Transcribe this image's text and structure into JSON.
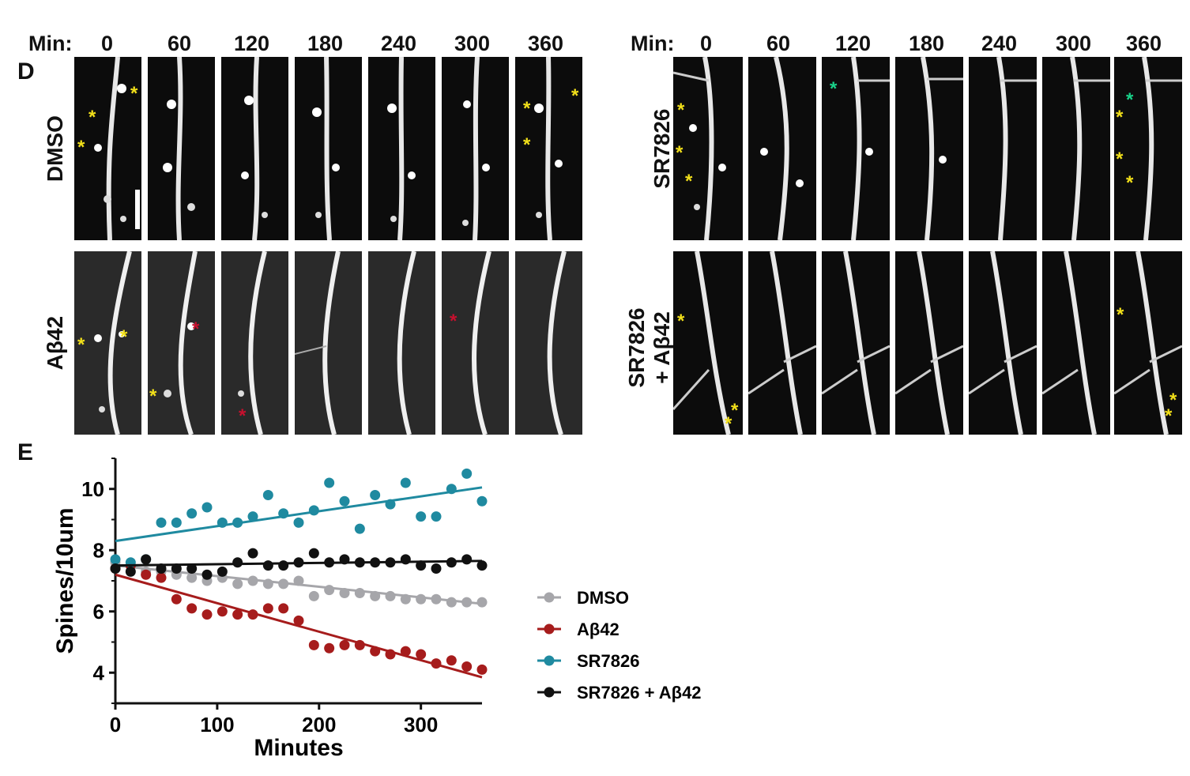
{
  "panel_letters": {
    "d": "D",
    "e": "E"
  },
  "min_label": "Min:",
  "time_points": [
    "0",
    "60",
    "120",
    "180",
    "240",
    "300",
    "360"
  ],
  "row_labels": {
    "dmso": "DMSO",
    "abeta": "Aβ42",
    "sr": "SR7826",
    "sr_abeta_1": "SR7826",
    "sr_abeta_2": "+ Aβ42"
  },
  "star_glyph": "*",
  "colors": {
    "dmso": "#a6a6aa",
    "abeta": "#a61c1c",
    "sr": "#1f8aa0",
    "sr_abeta": "#111111",
    "star_yellow": "#f2e01a",
    "star_red": "#c8102e",
    "star_green": "#19d38a"
  },
  "chart_data": {
    "type": "scatter",
    "title": "",
    "xlabel": "Minutes",
    "ylabel": "Spines/10um",
    "xlim": [
      0,
      360
    ],
    "ylim": [
      3,
      11
    ],
    "xticks": [
      0,
      100,
      200,
      300
    ],
    "yticks": [
      4,
      6,
      8,
      10
    ],
    "legend": "right",
    "x": [
      0,
      15,
      30,
      45,
      60,
      75,
      90,
      105,
      120,
      135,
      150,
      165,
      180,
      195,
      210,
      225,
      240,
      255,
      270,
      285,
      300,
      315,
      330,
      345,
      360
    ],
    "series": [
      {
        "name": "DMSO",
        "color": "#a6a6aa",
        "values": [
          7.6,
          7.5,
          7.3,
          7.3,
          7.2,
          7.1,
          7.0,
          7.1,
          6.9,
          7.0,
          6.9,
          6.9,
          7.0,
          6.5,
          6.7,
          6.6,
          6.6,
          6.5,
          6.5,
          6.4,
          6.4,
          6.4,
          6.3,
          6.3,
          6.3
        ],
        "trend": [
          7.5,
          6.25
        ]
      },
      {
        "name": "Aβ42",
        "color": "#a61c1c",
        "values": [
          7.4,
          7.5,
          7.2,
          7.1,
          6.4,
          6.1,
          5.9,
          6.0,
          5.9,
          5.9,
          6.1,
          6.1,
          5.7,
          4.9,
          4.8,
          4.9,
          4.9,
          4.7,
          4.6,
          4.7,
          4.6,
          4.3,
          4.4,
          4.2,
          4.1
        ],
        "trend": [
          7.2,
          3.85
        ]
      },
      {
        "name": "SR7826",
        "color": "#1f8aa0",
        "values": [
          7.7,
          7.6,
          7.7,
          8.9,
          8.9,
          9.2,
          9.4,
          8.9,
          8.9,
          9.1,
          9.8,
          9.2,
          8.9,
          9.3,
          10.2,
          9.6,
          8.7,
          9.8,
          9.5,
          10.2,
          9.1,
          9.1,
          10.0,
          10.5,
          9.6
        ],
        "trend": [
          8.3,
          10.05
        ]
      },
      {
        "name": "SR7826 + Aβ42",
        "color": "#111111",
        "values": [
          7.4,
          7.3,
          7.7,
          7.4,
          7.4,
          7.4,
          7.2,
          7.3,
          7.6,
          7.9,
          7.5,
          7.5,
          7.6,
          7.9,
          7.6,
          7.7,
          7.6,
          7.6,
          7.6,
          7.7,
          7.5,
          7.4,
          7.6,
          7.7,
          7.5
        ],
        "trend": [
          7.5,
          7.65
        ]
      }
    ]
  }
}
